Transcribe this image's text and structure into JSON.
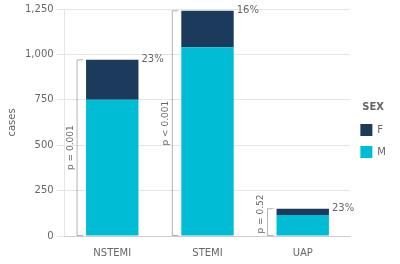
{
  "chart_data": {
    "type": "bar",
    "stacked": true,
    "categories": [
      "NSTEMI",
      "STEMI",
      "UAP"
    ],
    "series": [
      {
        "name": "M",
        "color": "#00BCD4",
        "values": [
          750,
          1040,
          115
        ]
      },
      {
        "name": "F",
        "color": "#1B3A5C",
        "values": [
          220,
          200,
          35
        ]
      }
    ],
    "ylabel": "cases",
    "ylim": [
      0,
      1250
    ],
    "yticks": [
      0,
      250,
      500,
      750,
      1000,
      1250
    ],
    "grid": true,
    "legend": "right",
    "legend_title": "SEX",
    "annotations": [
      "23%",
      "16%",
      "23%"
    ],
    "p_values": [
      "p = 0.001",
      "p < 0.001",
      "p = 0.52"
    ]
  }
}
